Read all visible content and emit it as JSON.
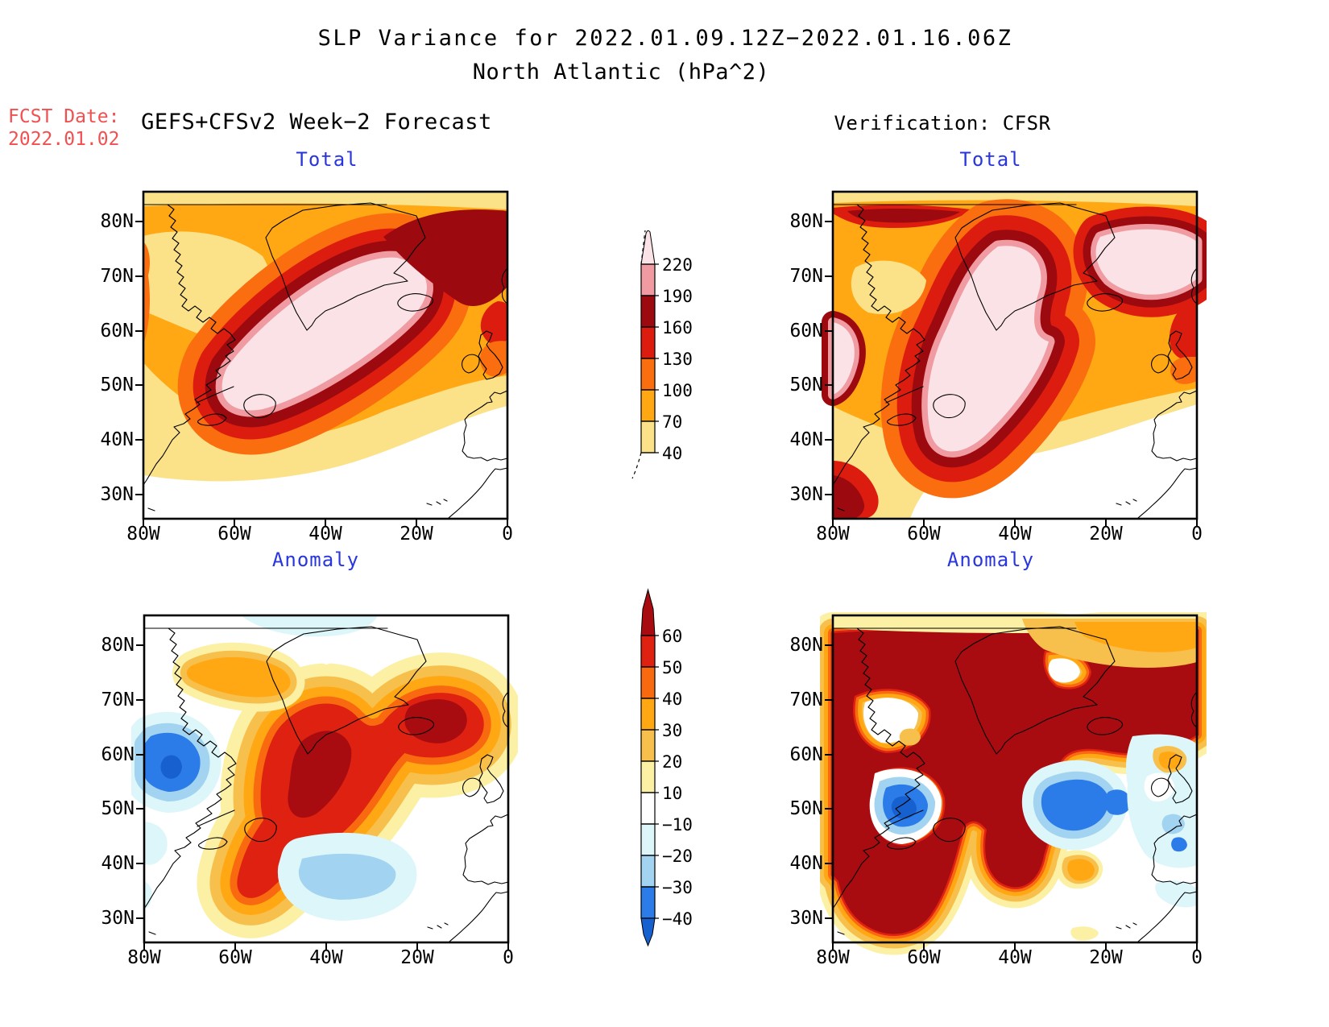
{
  "title": {
    "line1": "SLP Variance for 2022.01.09.12Z−2022.01.16.06Z",
    "line2": "North Atlantic (hPa^2)"
  },
  "fcst": {
    "label": "FCST Date:",
    "date": "2022.01.02"
  },
  "headers": {
    "left": "GEFS+CFSv2 Week−2 Forecast",
    "right": "Verification: CFSR"
  },
  "panels": {
    "forecast_total": {
      "subtitle": "Total"
    },
    "verification_total": {
      "subtitle": "Total"
    },
    "forecast_anomaly": {
      "subtitle": "Anomaly"
    },
    "verification_anomaly": {
      "subtitle": "Anomaly"
    }
  },
  "axes": {
    "lat": [
      "80N",
      "70N",
      "60N",
      "50N",
      "40N",
      "30N"
    ],
    "lon": [
      "80W",
      "60W",
      "40W",
      "20W",
      "0"
    ]
  },
  "colorbars": {
    "total": {
      "ticks": [
        "220",
        "190",
        "160",
        "130",
        "100",
        "70",
        "40"
      ],
      "seg_colors": [
        "t190",
        "t160",
        "t130",
        "t100",
        "t70",
        "t40"
      ],
      "cap_color": "t220"
    },
    "anomaly": {
      "ticks": [
        "60",
        "50",
        "40",
        "30",
        "20",
        "10",
        "−10",
        "−20",
        "−30",
        "−40"
      ],
      "seg_colors": [
        "a50",
        "a40",
        "a30",
        "a20",
        "a10",
        "white",
        "am10",
        "am20",
        "am30"
      ],
      "top_cap_color": "a60",
      "bottom_cap_color": "am40"
    }
  },
  "palette": {
    "t40": "#fbe289",
    "t70": "#ffa814",
    "t100": "#fa6e0f",
    "t130": "#dd1c10",
    "t160": "#9c0a10",
    "t190": "#f09ba1",
    "t220": "#fbe2e6",
    "a60": "#a80c10",
    "a50": "#de2110",
    "a40": "#f96a10",
    "a30": "#ffa814",
    "a20": "#f7bf4b",
    "a10": "#fbf0a3",
    "white": "#ffffff",
    "am10": "#dcf6fa",
    "am20": "#a2d3f0",
    "am30": "#2b7ce9",
    "am40": "#1661cf",
    "blue": "#2936dd",
    "red": "#f25050"
  },
  "chart_data": [
    {
      "type": "heatmap",
      "panel": "forecast_total",
      "title": "Total",
      "source": "GEFS+CFSv2 Week−2 Forecast",
      "x_ticks": [
        "80W",
        "60W",
        "40W",
        "20W",
        "0"
      ],
      "y_ticks": [
        "80N",
        "70N",
        "60N",
        "50N",
        "40N",
        "30N"
      ],
      "contour_levels": [
        40,
        70,
        100,
        130,
        160,
        190,
        220
      ],
      "units": "hPa^2",
      "features": "broad variance maximum >220 hPa^2 elongated SW-NE from Newfoundland toward Iceland, low values over NE Canada and subtropics"
    },
    {
      "type": "heatmap",
      "panel": "verification_total",
      "title": "Total",
      "source": "Verification: CFSR",
      "x_ticks": [
        "80W",
        "60W",
        "40W",
        "20W",
        "0"
      ],
      "y_ticks": [
        "80N",
        "70N",
        "60N",
        "50N",
        "40N",
        "30N"
      ],
      "contour_levels": [
        40,
        70,
        100,
        130,
        160,
        190,
        220
      ],
      "units": "hPa^2",
      "features": "large >220 hPa^2 areas over Greenland/central Atlantic and northeastern Atlantic separated by 160-190 bands"
    },
    {
      "type": "heatmap",
      "panel": "forecast_anomaly",
      "title": "Anomaly",
      "source": "GEFS+CFSv2 Week−2 Forecast",
      "x_ticks": [
        "80W",
        "60W",
        "40W",
        "20W",
        "0"
      ],
      "y_ticks": [
        "80N",
        "70N",
        "60N",
        "50N",
        "40N",
        "30N"
      ],
      "contour_levels": [
        -40,
        -30,
        -20,
        -10,
        10,
        20,
        30,
        40,
        50,
        60
      ],
      "units": "hPa^2",
      "features": "positive anomaly >60 over S Greenland/Labrador and near Iceland, negative anomaly ~-40 west of 70W near 60N, weak negative band near 40N mid-Atlantic"
    },
    {
      "type": "heatmap",
      "panel": "verification_anomaly",
      "title": "Anomaly",
      "source": "Verification: CFSR",
      "x_ticks": [
        "80W",
        "60W",
        "40W",
        "20W",
        "0"
      ],
      "y_ticks": [
        "80N",
        "70N",
        "60N",
        "50N",
        "40N",
        "30N"
      ],
      "contour_levels": [
        -40,
        -30,
        -20,
        -10,
        10,
        20,
        30,
        40,
        50,
        60
      ],
      "units": "hPa^2",
      "features": "extensive >60 positive anomalies across high latitudes and western Atlantic, strong negative centers <-40 near Nova Scotia and central Atlantic ~50N"
    }
  ]
}
